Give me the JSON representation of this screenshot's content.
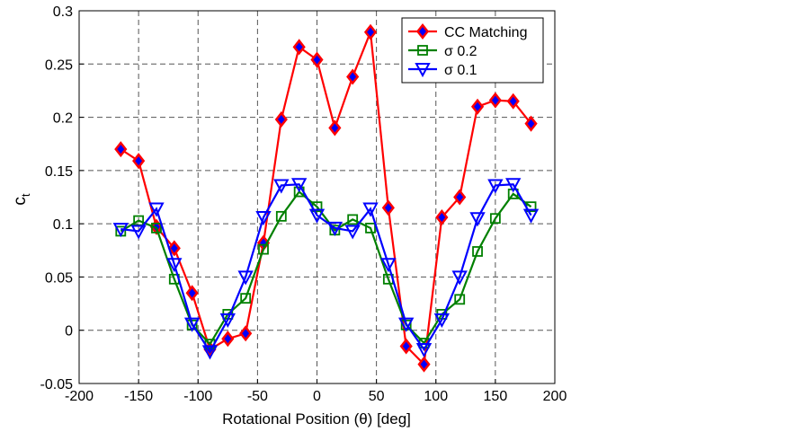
{
  "chart_data": {
    "type": "line",
    "title": "",
    "xlabel": "Rotational Position (θ) [deg]",
    "ylabel_main": "c",
    "ylabel_sub": "t",
    "xlim": [
      -200,
      200
    ],
    "ylim": [
      -0.05,
      0.3
    ],
    "xticks": [
      -200,
      -150,
      -100,
      -50,
      0,
      50,
      100,
      150,
      200
    ],
    "xtick_labels": [
      "-200",
      "-150",
      "-100",
      "-50",
      "0",
      "50",
      "100",
      "150",
      "200"
    ],
    "yticks": [
      -0.05,
      0,
      0.05,
      0.1,
      0.15,
      0.2,
      0.25,
      0.3
    ],
    "ytick_labels": [
      "-0.05",
      "0",
      "0.05",
      "0.1",
      "0.15",
      "0.2",
      "0.25",
      "0.3"
    ],
    "grid": true,
    "legend_position": "top-right",
    "x": [
      -165,
      -150,
      -135,
      -120,
      -105,
      -90,
      -75,
      -60,
      -45,
      -30,
      -15,
      0,
      15,
      30,
      45,
      60,
      75,
      90,
      105,
      120,
      135,
      150,
      165,
      180
    ],
    "series": [
      {
        "name": "CC Matching",
        "color": "#ff0000",
        "marker": "diamond",
        "marker_fill": "#0000ff",
        "values": [
          0.17,
          0.159,
          0.097,
          0.077,
          0.035,
          -0.018,
          -0.008,
          -0.003,
          0.082,
          0.198,
          0.266,
          0.254,
          0.19,
          0.238,
          0.28,
          0.115,
          -0.015,
          -0.032,
          0.106,
          0.125,
          0.21,
          0.216,
          0.215,
          0.194
        ]
      },
      {
        "name": "σ 0.2",
        "color": "#008000",
        "marker": "square",
        "marker_fill": "none",
        "values": [
          0.093,
          0.103,
          0.096,
          0.048,
          0.005,
          -0.013,
          0.015,
          0.03,
          0.076,
          0.107,
          0.13,
          0.116,
          0.094,
          0.104,
          0.096,
          0.048,
          0.005,
          -0.012,
          0.015,
          0.029,
          0.074,
          0.105,
          0.128,
          0.116
        ]
      },
      {
        "name": "σ 0.1",
        "color": "#0000ff",
        "marker": "triangle-down",
        "marker_fill": "none",
        "values": [
          0.095,
          0.093,
          0.114,
          0.062,
          0.006,
          -0.02,
          0.01,
          0.05,
          0.106,
          0.136,
          0.137,
          0.108,
          0.096,
          0.093,
          0.114,
          0.062,
          0.006,
          -0.018,
          0.01,
          0.05,
          0.105,
          0.136,
          0.137,
          0.108
        ]
      }
    ]
  }
}
